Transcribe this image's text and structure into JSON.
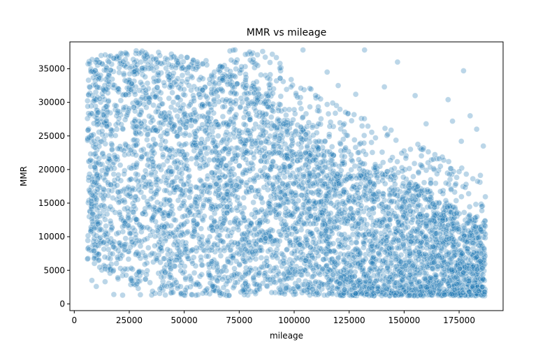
{
  "chart_data": {
    "type": "scatter",
    "title": "MMR vs mileage",
    "xlabel": "mileage",
    "ylabel": "MMR",
    "xlim": [
      -2000,
      195000
    ],
    "ylim": [
      -1000,
      39000
    ],
    "x_ticks": [
      0,
      25000,
      50000,
      75000,
      100000,
      125000,
      150000,
      175000
    ],
    "y_ticks": [
      0,
      5000,
      10000,
      15000,
      20000,
      25000,
      30000,
      35000
    ],
    "x_tick_labels": [
      "0",
      "25000",
      "50000",
      "75000",
      "100000",
      "125000",
      "150000",
      "175000"
    ],
    "y_tick_labels": [
      "0",
      "5000",
      "10000",
      "15000",
      "20000",
      "25000",
      "30000",
      "35000"
    ],
    "grid": false,
    "legend": "none",
    "point_color": "#1f77b4",
    "point_alpha": 0.3,
    "point_edge_color": "#ffffff",
    "data_extent": {
      "mileage_min": 6000,
      "mileage_max": 187000,
      "mmr_min": 1000,
      "mmr_max": 38000
    },
    "upper_envelope": [
      {
        "x": 6000,
        "y": 36500
      },
      {
        "x": 25000,
        "y": 38000
      },
      {
        "x": 50000,
        "y": 37000
      },
      {
        "x": 75000,
        "y": 35000
      },
      {
        "x": 90000,
        "y": 31000
      },
      {
        "x": 100000,
        "y": 27000
      },
      {
        "x": 125000,
        "y": 22000
      },
      {
        "x": 150000,
        "y": 19000
      },
      {
        "x": 175000,
        "y": 14000
      },
      {
        "x": 187000,
        "y": 12500
      }
    ],
    "outliers": [
      {
        "x": 8000,
        "y": 3500
      },
      {
        "x": 10000,
        "y": 2600
      },
      {
        "x": 14000,
        "y": 3300
      },
      {
        "x": 18000,
        "y": 1400
      },
      {
        "x": 22000,
        "y": 1300
      },
      {
        "x": 104000,
        "y": 37800
      },
      {
        "x": 132000,
        "y": 37800
      },
      {
        "x": 147000,
        "y": 36000
      },
      {
        "x": 177000,
        "y": 34700
      },
      {
        "x": 170000,
        "y": 30400
      },
      {
        "x": 180000,
        "y": 28000
      },
      {
        "x": 186000,
        "y": 23500
      },
      {
        "x": 183000,
        "y": 26000
      },
      {
        "x": 155000,
        "y": 31000
      },
      {
        "x": 141000,
        "y": 32300
      },
      {
        "x": 160000,
        "y": 26800
      },
      {
        "x": 172000,
        "y": 27200
      },
      {
        "x": 120000,
        "y": 32500
      },
      {
        "x": 115000,
        "y": 34500
      },
      {
        "x": 128000,
        "y": 31200
      },
      {
        "x": 112000,
        "y": 30500
      },
      {
        "x": 176000,
        "y": 24200
      }
    ]
  }
}
